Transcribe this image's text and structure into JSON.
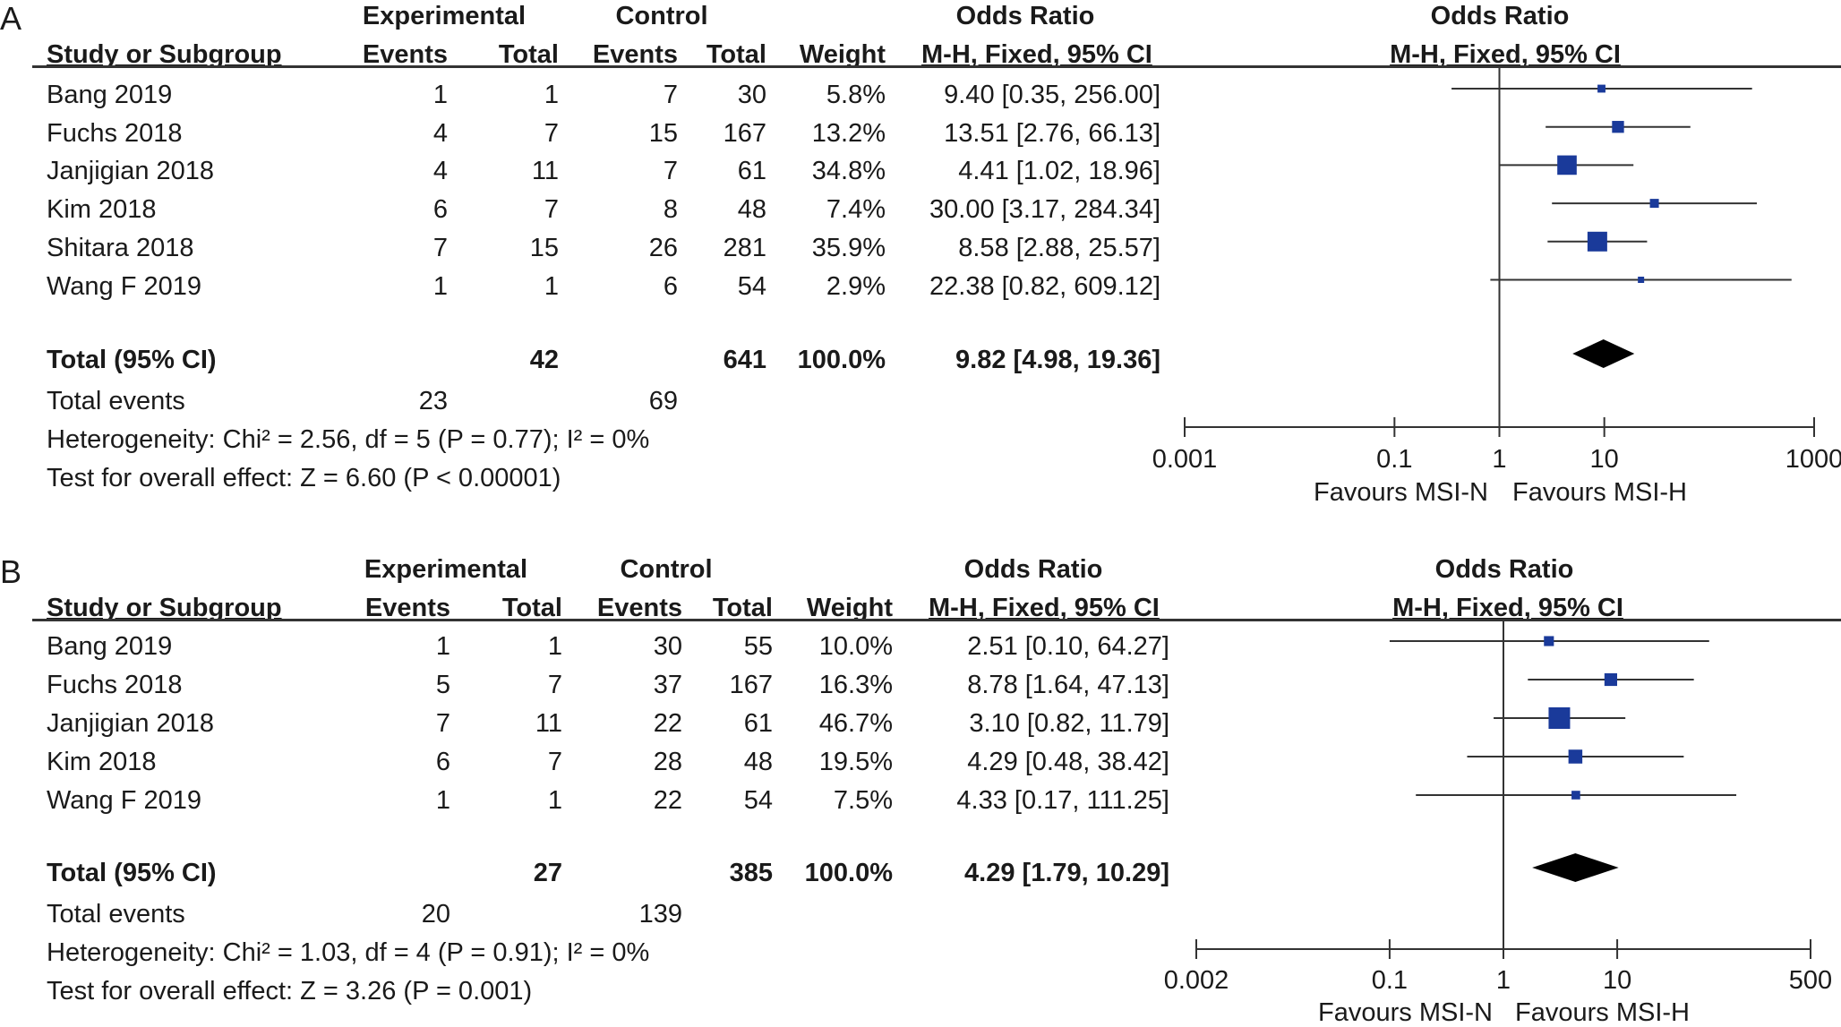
{
  "panels": [
    {
      "letter": "A",
      "headers": {
        "experimental": "Experimental",
        "control": "Control",
        "or_table": "Odds Ratio",
        "or_plot": "Odds Ratio",
        "study": "Study or Subgroup",
        "events": "Events",
        "total": "Total",
        "weight": "Weight",
        "method": "M-H, Fixed, 95% CI",
        "method_plot": "M-H, Fixed, 95% CI"
      },
      "studies": [
        {
          "name": "Bang 2019",
          "exp_events": "1",
          "exp_total": "1",
          "ctl_events": "7",
          "ctl_total": "30",
          "weight": "5.8%",
          "ci_text": "9.40 [0.35, 256.00]"
        },
        {
          "name": "Fuchs 2018",
          "exp_events": "4",
          "exp_total": "7",
          "ctl_events": "15",
          "ctl_total": "167",
          "weight": "13.2%",
          "ci_text": "13.51 [2.76, 66.13]"
        },
        {
          "name": "Janjigian 2018",
          "exp_events": "4",
          "exp_total": "11",
          "ctl_events": "7",
          "ctl_total": "61",
          "weight": "34.8%",
          "ci_text": "4.41 [1.02, 18.96]"
        },
        {
          "name": "Kim 2018",
          "exp_events": "6",
          "exp_total": "7",
          "ctl_events": "8",
          "ctl_total": "48",
          "weight": "7.4%",
          "ci_text": "30.00 [3.17, 284.34]"
        },
        {
          "name": "Shitara 2018",
          "exp_events": "7",
          "exp_total": "15",
          "ctl_events": "26",
          "ctl_total": "281",
          "weight": "35.9%",
          "ci_text": "8.58 [2.88, 25.57]"
        },
        {
          "name": "Wang F 2019",
          "exp_events": "1",
          "exp_total": "1",
          "ctl_events": "6",
          "ctl_total": "54",
          "weight": "2.9%",
          "ci_text": "22.38 [0.82, 609.12]"
        }
      ],
      "total": {
        "label": "Total (95% CI)",
        "exp_total": "42",
        "ctl_total": "641",
        "weight": "100.0%",
        "ci_text": "9.82 [4.98, 19.36]"
      },
      "total_events": {
        "label": "Total events",
        "exp": "23",
        "ctl": "69"
      },
      "heterogeneity": "Heterogeneity: Chi² = 2.56, df = 5 (P = 0.77); I² = 0%",
      "overall_effect": "Test for overall effect: Z = 6.60 (P < 0.00001)",
      "favours_left": "Favours MSI-N",
      "favours_right": "Favours MSI-H",
      "axis_ticks": [
        {
          "value": 0.001,
          "label": "0.001"
        },
        {
          "value": 0.1,
          "label": "0.1"
        },
        {
          "value": 1,
          "label": "1"
        },
        {
          "value": 10,
          "label": "10"
        },
        {
          "value": 1000,
          "label": "1000"
        }
      ]
    },
    {
      "letter": "B",
      "headers": {
        "experimental": "Experimental",
        "control": "Control",
        "or_table": "Odds Ratio",
        "or_plot": "Odds Ratio",
        "study": "Study or Subgroup",
        "events": "Events",
        "total": "Total",
        "weight": "Weight",
        "method": "M-H, Fixed, 95% CI",
        "method_plot": "M-H, Fixed, 95% CI"
      },
      "studies": [
        {
          "name": "Bang 2019",
          "exp_events": "1",
          "exp_total": "1",
          "ctl_events": "30",
          "ctl_total": "55",
          "weight": "10.0%",
          "ci_text": "2.51 [0.10, 64.27]"
        },
        {
          "name": "Fuchs 2018",
          "exp_events": "5",
          "exp_total": "7",
          "ctl_events": "37",
          "ctl_total": "167",
          "weight": "16.3%",
          "ci_text": "8.78 [1.64, 47.13]"
        },
        {
          "name": "Janjigian 2018",
          "exp_events": "7",
          "exp_total": "11",
          "ctl_events": "22",
          "ctl_total": "61",
          "weight": "46.7%",
          "ci_text": "3.10 [0.82, 11.79]"
        },
        {
          "name": "Kim 2018",
          "exp_events": "6",
          "exp_total": "7",
          "ctl_events": "28",
          "ctl_total": "48",
          "weight": "19.5%",
          "ci_text": "4.29 [0.48, 38.42]"
        },
        {
          "name": "Wang F 2019",
          "exp_events": "1",
          "exp_total": "1",
          "ctl_events": "22",
          "ctl_total": "54",
          "weight": "7.5%",
          "ci_text": "4.33 [0.17, 111.25]"
        }
      ],
      "total": {
        "label": "Total (95% CI)",
        "exp_total": "27",
        "ctl_total": "385",
        "weight": "100.0%",
        "ci_text": "4.29 [1.79, 10.29]"
      },
      "total_events": {
        "label": "Total events",
        "exp": "20",
        "ctl": "139"
      },
      "heterogeneity": "Heterogeneity: Chi² = 1.03, df = 4 (P = 0.91); I² = 0%",
      "overall_effect": "Test for overall effect: Z = 3.26 (P = 0.001)",
      "favours_left": "Favours MSI-N",
      "favours_right": "Favours MSI-H",
      "axis_ticks": [
        {
          "value": 0.002,
          "label": "0.002"
        },
        {
          "value": 0.1,
          "label": "0.1"
        },
        {
          "value": 1,
          "label": "1"
        },
        {
          "value": 10,
          "label": "10"
        },
        {
          "value": 500,
          "label": "500"
        }
      ]
    }
  ],
  "chart_data": [
    {
      "type": "forest",
      "scale": "log",
      "xlim": [
        0.001,
        1000
      ],
      "marker_color": "#1a3a9a",
      "studies": [
        {
          "name": "Bang 2019",
          "or": 9.4,
          "lower": 0.35,
          "upper": 256.0,
          "weight": 5.8
        },
        {
          "name": "Fuchs 2018",
          "or": 13.51,
          "lower": 2.76,
          "upper": 66.13,
          "weight": 13.2
        },
        {
          "name": "Janjigian 2018",
          "or": 4.41,
          "lower": 1.02,
          "upper": 18.96,
          "weight": 34.8
        },
        {
          "name": "Kim 2018",
          "or": 30.0,
          "lower": 3.17,
          "upper": 284.34,
          "weight": 7.4
        },
        {
          "name": "Shitara 2018",
          "or": 8.58,
          "lower": 2.88,
          "upper": 25.57,
          "weight": 35.9
        },
        {
          "name": "Wang F 2019",
          "or": 22.38,
          "lower": 0.82,
          "upper": 609.12,
          "weight": 2.9
        }
      ],
      "pooled": {
        "or": 9.82,
        "lower": 4.98,
        "upper": 19.36
      }
    },
    {
      "type": "forest",
      "scale": "log",
      "xlim": [
        0.002,
        500
      ],
      "marker_color": "#1a3a9a",
      "studies": [
        {
          "name": "Bang 2019",
          "or": 2.51,
          "lower": 0.1,
          "upper": 64.27,
          "weight": 10.0
        },
        {
          "name": "Fuchs 2018",
          "or": 8.78,
          "lower": 1.64,
          "upper": 47.13,
          "weight": 16.3
        },
        {
          "name": "Janjigian 2018",
          "or": 3.1,
          "lower": 0.82,
          "upper": 11.79,
          "weight": 46.7
        },
        {
          "name": "Kim 2018",
          "or": 4.29,
          "lower": 0.48,
          "upper": 38.42,
          "weight": 19.5
        },
        {
          "name": "Wang F 2019",
          "or": 4.33,
          "lower": 0.17,
          "upper": 111.25,
          "weight": 7.5
        }
      ],
      "pooled": {
        "or": 4.29,
        "lower": 1.79,
        "upper": 10.29
      }
    }
  ]
}
